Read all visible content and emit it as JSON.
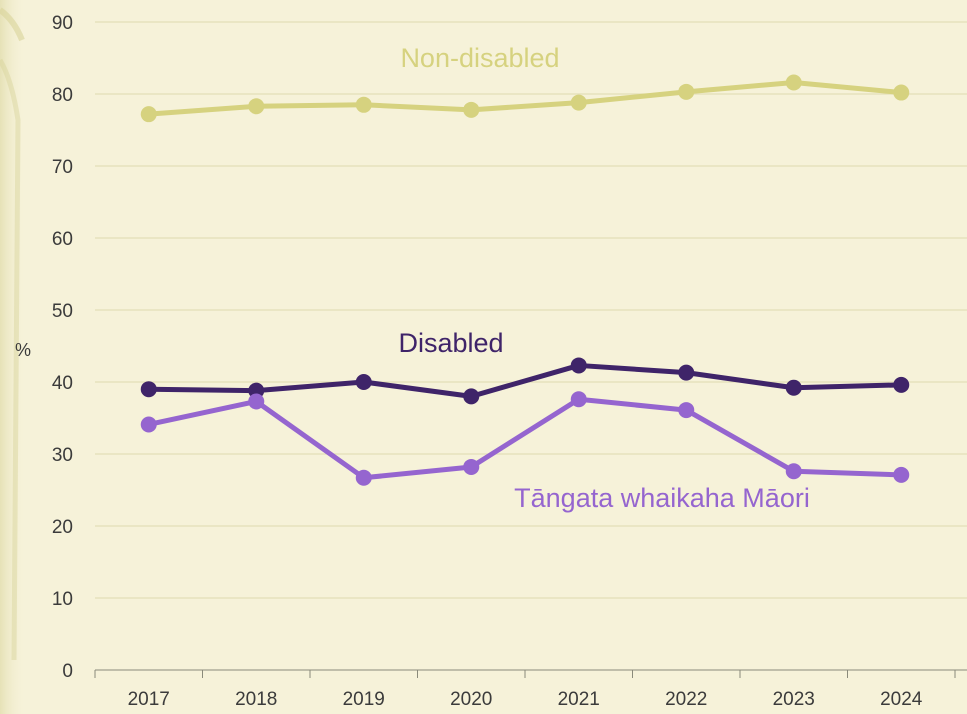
{
  "chart_data": {
    "type": "line",
    "x": [
      "2017",
      "2018",
      "2019",
      "2020",
      "2021",
      "2022",
      "2023",
      "2024"
    ],
    "ylim": [
      0,
      90
    ],
    "yticks": [
      0,
      10,
      20,
      30,
      40,
      50,
      60,
      70,
      80,
      90
    ],
    "ylabel": "%",
    "grid": true,
    "series": [
      {
        "name": "Non-disabled",
        "color": "#d6d27f",
        "values": [
          77.2,
          78.3,
          78.5,
          77.8,
          78.8,
          80.3,
          81.6,
          80.2
        ]
      },
      {
        "name": "Disabled",
        "color": "#3f2469",
        "values": [
          39.0,
          38.8,
          40.0,
          38.0,
          42.3,
          41.3,
          39.2,
          39.6
        ]
      },
      {
        "name": "Tāngata whaikaha Māori",
        "color": "#9565cf",
        "values": [
          34.1,
          37.3,
          26.7,
          28.2,
          37.6,
          36.1,
          27.6,
          27.1
        ]
      }
    ]
  }
}
